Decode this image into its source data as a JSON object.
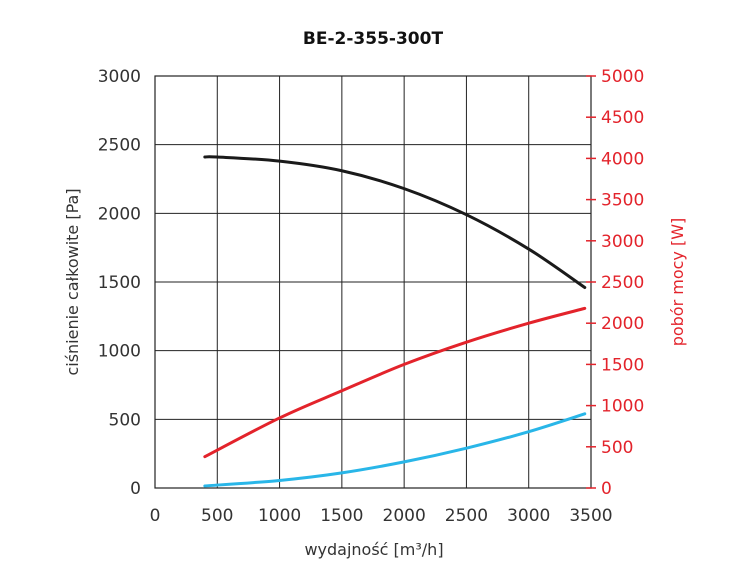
{
  "chart_data": {
    "type": "line",
    "title": "BE-2-355-300T",
    "xlabel": "wydajność [m³/h]",
    "ylabel_left": "ciśnienie całkowite [Pa]",
    "ylabel_right": "pobór mocy [W]",
    "xlim": [
      0,
      3500
    ],
    "ylim_left": [
      0,
      3000
    ],
    "ylim_right": [
      0,
      5000
    ],
    "x_ticks": [
      "0",
      "500",
      "1000",
      "1500",
      "2000",
      "2500",
      "3000",
      "3500"
    ],
    "y_left_ticks": [
      "0",
      "500",
      "1000",
      "1500",
      "2000",
      "2500",
      "3000"
    ],
    "y_right_ticks": [
      "0",
      "500",
      "1000",
      "1500",
      "2000",
      "2500",
      "3000",
      "3500",
      "4000",
      "4500",
      "5000"
    ],
    "grid": true,
    "series": [
      {
        "axis": "left",
        "color": "#1a1a1a",
        "x": [
          400,
          500,
          1000,
          1500,
          2000,
          2500,
          3000,
          3450
        ],
        "y": [
          2410,
          2410,
          2380,
          2310,
          2180,
          1990,
          1740,
          1460
        ]
      },
      {
        "axis": "right",
        "color": "#e3232b",
        "x": [
          400,
          1000,
          1500,
          2000,
          2500,
          3000,
          3450
        ],
        "y": [
          380,
          850,
          1180,
          1500,
          1770,
          2000,
          2180
        ]
      },
      {
        "axis": "left",
        "color": "#29b6e8",
        "x": [
          400,
          1000,
          1500,
          2000,
          2500,
          3000,
          3450
        ],
        "y": [
          15,
          55,
          110,
          190,
          290,
          410,
          540
        ]
      }
    ]
  }
}
